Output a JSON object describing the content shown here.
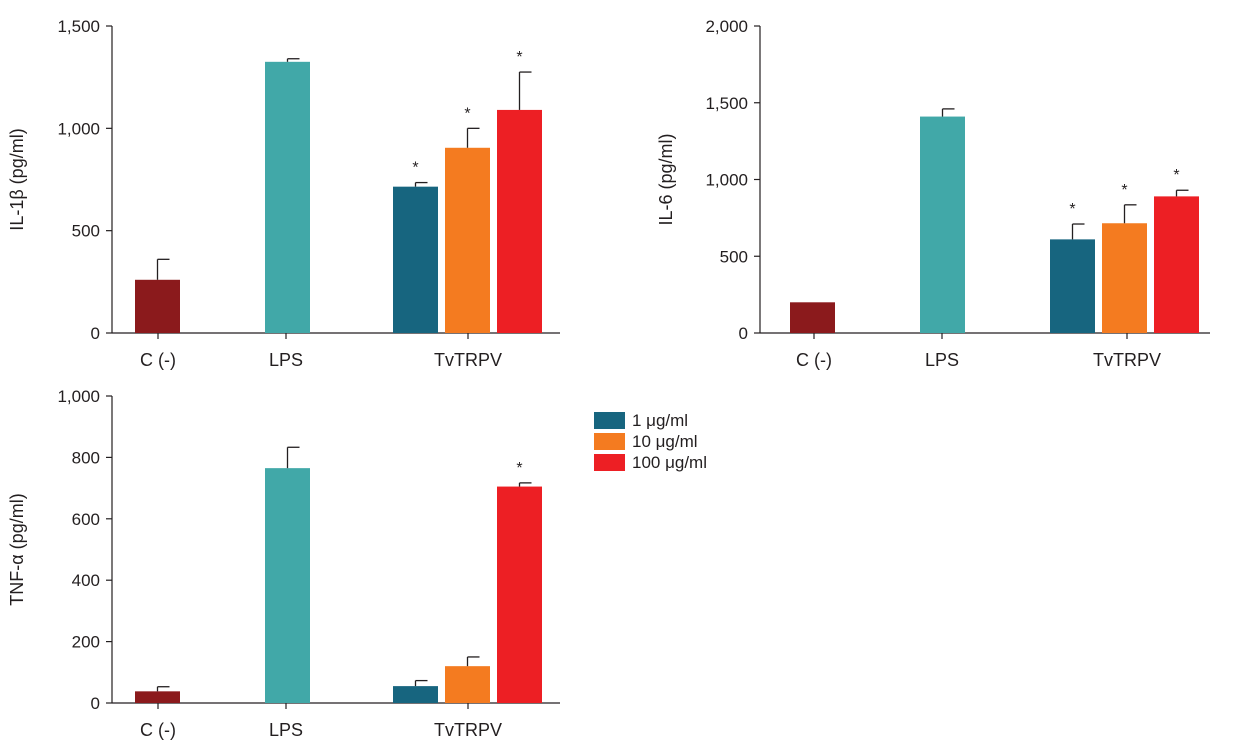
{
  "colors": {
    "control": "#8b1a1c",
    "lps": "#41a8a8",
    "dose_1": "#17657f",
    "dose_10": "#f47b20",
    "dose_100": "#ed1f24",
    "axis": "#231f20"
  },
  "legend": {
    "entries": [
      {
        "label": "1 μg/ml",
        "color_key": "dose_1"
      },
      {
        "label": "10 μg/ml",
        "color_key": "dose_10"
      },
      {
        "label": "100 μg/ml",
        "color_key": "dose_100"
      }
    ]
  },
  "chart_data": [
    {
      "id": "il1b",
      "type": "bar",
      "ylabel": "IL-1β (pg/ml)",
      "ylim": [
        0,
        1500
      ],
      "yticks": [
        0,
        500,
        1000,
        1500
      ],
      "ytick_labels": [
        "0",
        "500",
        "1,000",
        "1,500"
      ],
      "groups": [
        "C (-)",
        "LPS",
        "TvTRPV"
      ],
      "bars": [
        {
          "group": "C (-)",
          "series": "control",
          "value": 260,
          "error": 100,
          "sig": ""
        },
        {
          "group": "LPS",
          "series": "lps",
          "value": 1325,
          "error": 15,
          "sig": ""
        },
        {
          "group": "TvTRPV",
          "series": "1 μg/ml",
          "value": 715,
          "error": 20,
          "sig": "*"
        },
        {
          "group": "TvTRPV",
          "series": "10 μg/ml",
          "value": 905,
          "error": 95,
          "sig": "*"
        },
        {
          "group": "TvTRPV",
          "series": "100 μg/ml",
          "value": 1090,
          "error": 185,
          "sig": "*"
        }
      ]
    },
    {
      "id": "il6",
      "type": "bar",
      "ylabel": "IL-6 (pg/ml)",
      "ylim": [
        0,
        2000
      ],
      "yticks": [
        0,
        500,
        1000,
        1500,
        2000
      ],
      "ytick_labels": [
        "0",
        "500",
        "1,000",
        "1,500",
        "2,000"
      ],
      "groups": [
        "C (-)",
        "LPS",
        "TvTRPV"
      ],
      "bars": [
        {
          "group": "C (-)",
          "series": "control",
          "value": 200,
          "error": 0,
          "sig": ""
        },
        {
          "group": "LPS",
          "series": "lps",
          "value": 1410,
          "error": 50,
          "sig": ""
        },
        {
          "group": "TvTRPV",
          "series": "1 μg/ml",
          "value": 610,
          "error": 100,
          "sig": "*"
        },
        {
          "group": "TvTRPV",
          "series": "10 μg/ml",
          "value": 715,
          "error": 120,
          "sig": "*"
        },
        {
          "group": "TvTRPV",
          "series": "100 μg/ml",
          "value": 890,
          "error": 40,
          "sig": "*"
        }
      ]
    },
    {
      "id": "tnfa",
      "type": "bar",
      "ylabel": "TNF-α (pg/ml)",
      "ylim": [
        0,
        1000
      ],
      "yticks": [
        0,
        200,
        400,
        600,
        800,
        1000
      ],
      "ytick_labels": [
        "0",
        "200",
        "400",
        "600",
        "800",
        "1,000"
      ],
      "groups": [
        "C (-)",
        "LPS",
        "TvTRPV"
      ],
      "bars": [
        {
          "group": "C (-)",
          "series": "control",
          "value": 38,
          "error": 15,
          "sig": ""
        },
        {
          "group": "LPS",
          "series": "lps",
          "value": 765,
          "error": 68,
          "sig": ""
        },
        {
          "group": "TvTRPV",
          "series": "1 μg/ml",
          "value": 55,
          "error": 18,
          "sig": ""
        },
        {
          "group": "TvTRPV",
          "series": "10 μg/ml",
          "value": 120,
          "error": 30,
          "sig": ""
        },
        {
          "group": "TvTRPV",
          "series": "100 μg/ml",
          "value": 705,
          "error": 12,
          "sig": "*"
        }
      ]
    }
  ]
}
